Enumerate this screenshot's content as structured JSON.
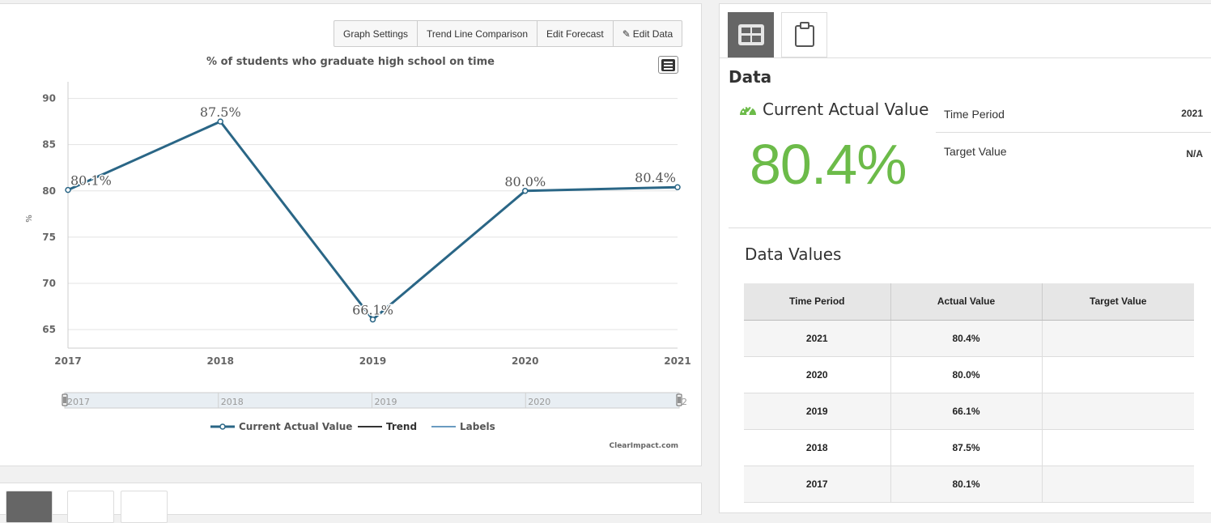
{
  "toolbar": {
    "graph_settings": "Graph Settings",
    "trend_line": "Trend Line Comparison",
    "edit_forecast": "Edit Forecast",
    "edit_data": "Edit Data"
  },
  "chart_data": {
    "type": "line",
    "title": "% of students who graduate high school on time",
    "xlabel": "",
    "ylabel": "%",
    "categories": [
      "2017",
      "2018",
      "2019",
      "2020",
      "2021"
    ],
    "series": [
      {
        "name": "Current Actual Value",
        "values": [
          80.1,
          87.5,
          66.1,
          80.0,
          80.4
        ],
        "labels": [
          "80.1%",
          "87.5%",
          "66.1%",
          "80.0%",
          "80.4%"
        ],
        "color": "#2a6686"
      }
    ],
    "y_ticks": [
      65,
      70,
      75,
      80,
      85,
      90
    ],
    "ylim": [
      63,
      91.8
    ],
    "navigator_ticks": [
      "2017",
      "2018",
      "2019",
      "2020",
      "2"
    ],
    "legend": [
      {
        "name": "Current Actual Value",
        "color": "#2a6686"
      },
      {
        "name": "Trend",
        "color": "#333333"
      },
      {
        "name": "Labels",
        "color": "#6a9bc0"
      }
    ],
    "credits": "ClearImpact.com"
  },
  "data_panel": {
    "heading": "Data",
    "cav_label": "Current Actual Value",
    "cav_value": "80.4%",
    "cav_color": "#6cbb49",
    "time_period_label": "Time Period",
    "time_period_value": "2021",
    "target_value_label": "Target Value",
    "target_value_value": "N/A"
  },
  "data_values": {
    "heading": "Data Values",
    "columns": [
      "Time Period",
      "Actual Value",
      "Target Value"
    ],
    "rows": [
      [
        "2021",
        "80.4%",
        ""
      ],
      [
        "2020",
        "80.0%",
        ""
      ],
      [
        "2019",
        "66.1%",
        ""
      ],
      [
        "2018",
        "87.5%",
        ""
      ],
      [
        "2017",
        "80.1%",
        ""
      ]
    ]
  }
}
